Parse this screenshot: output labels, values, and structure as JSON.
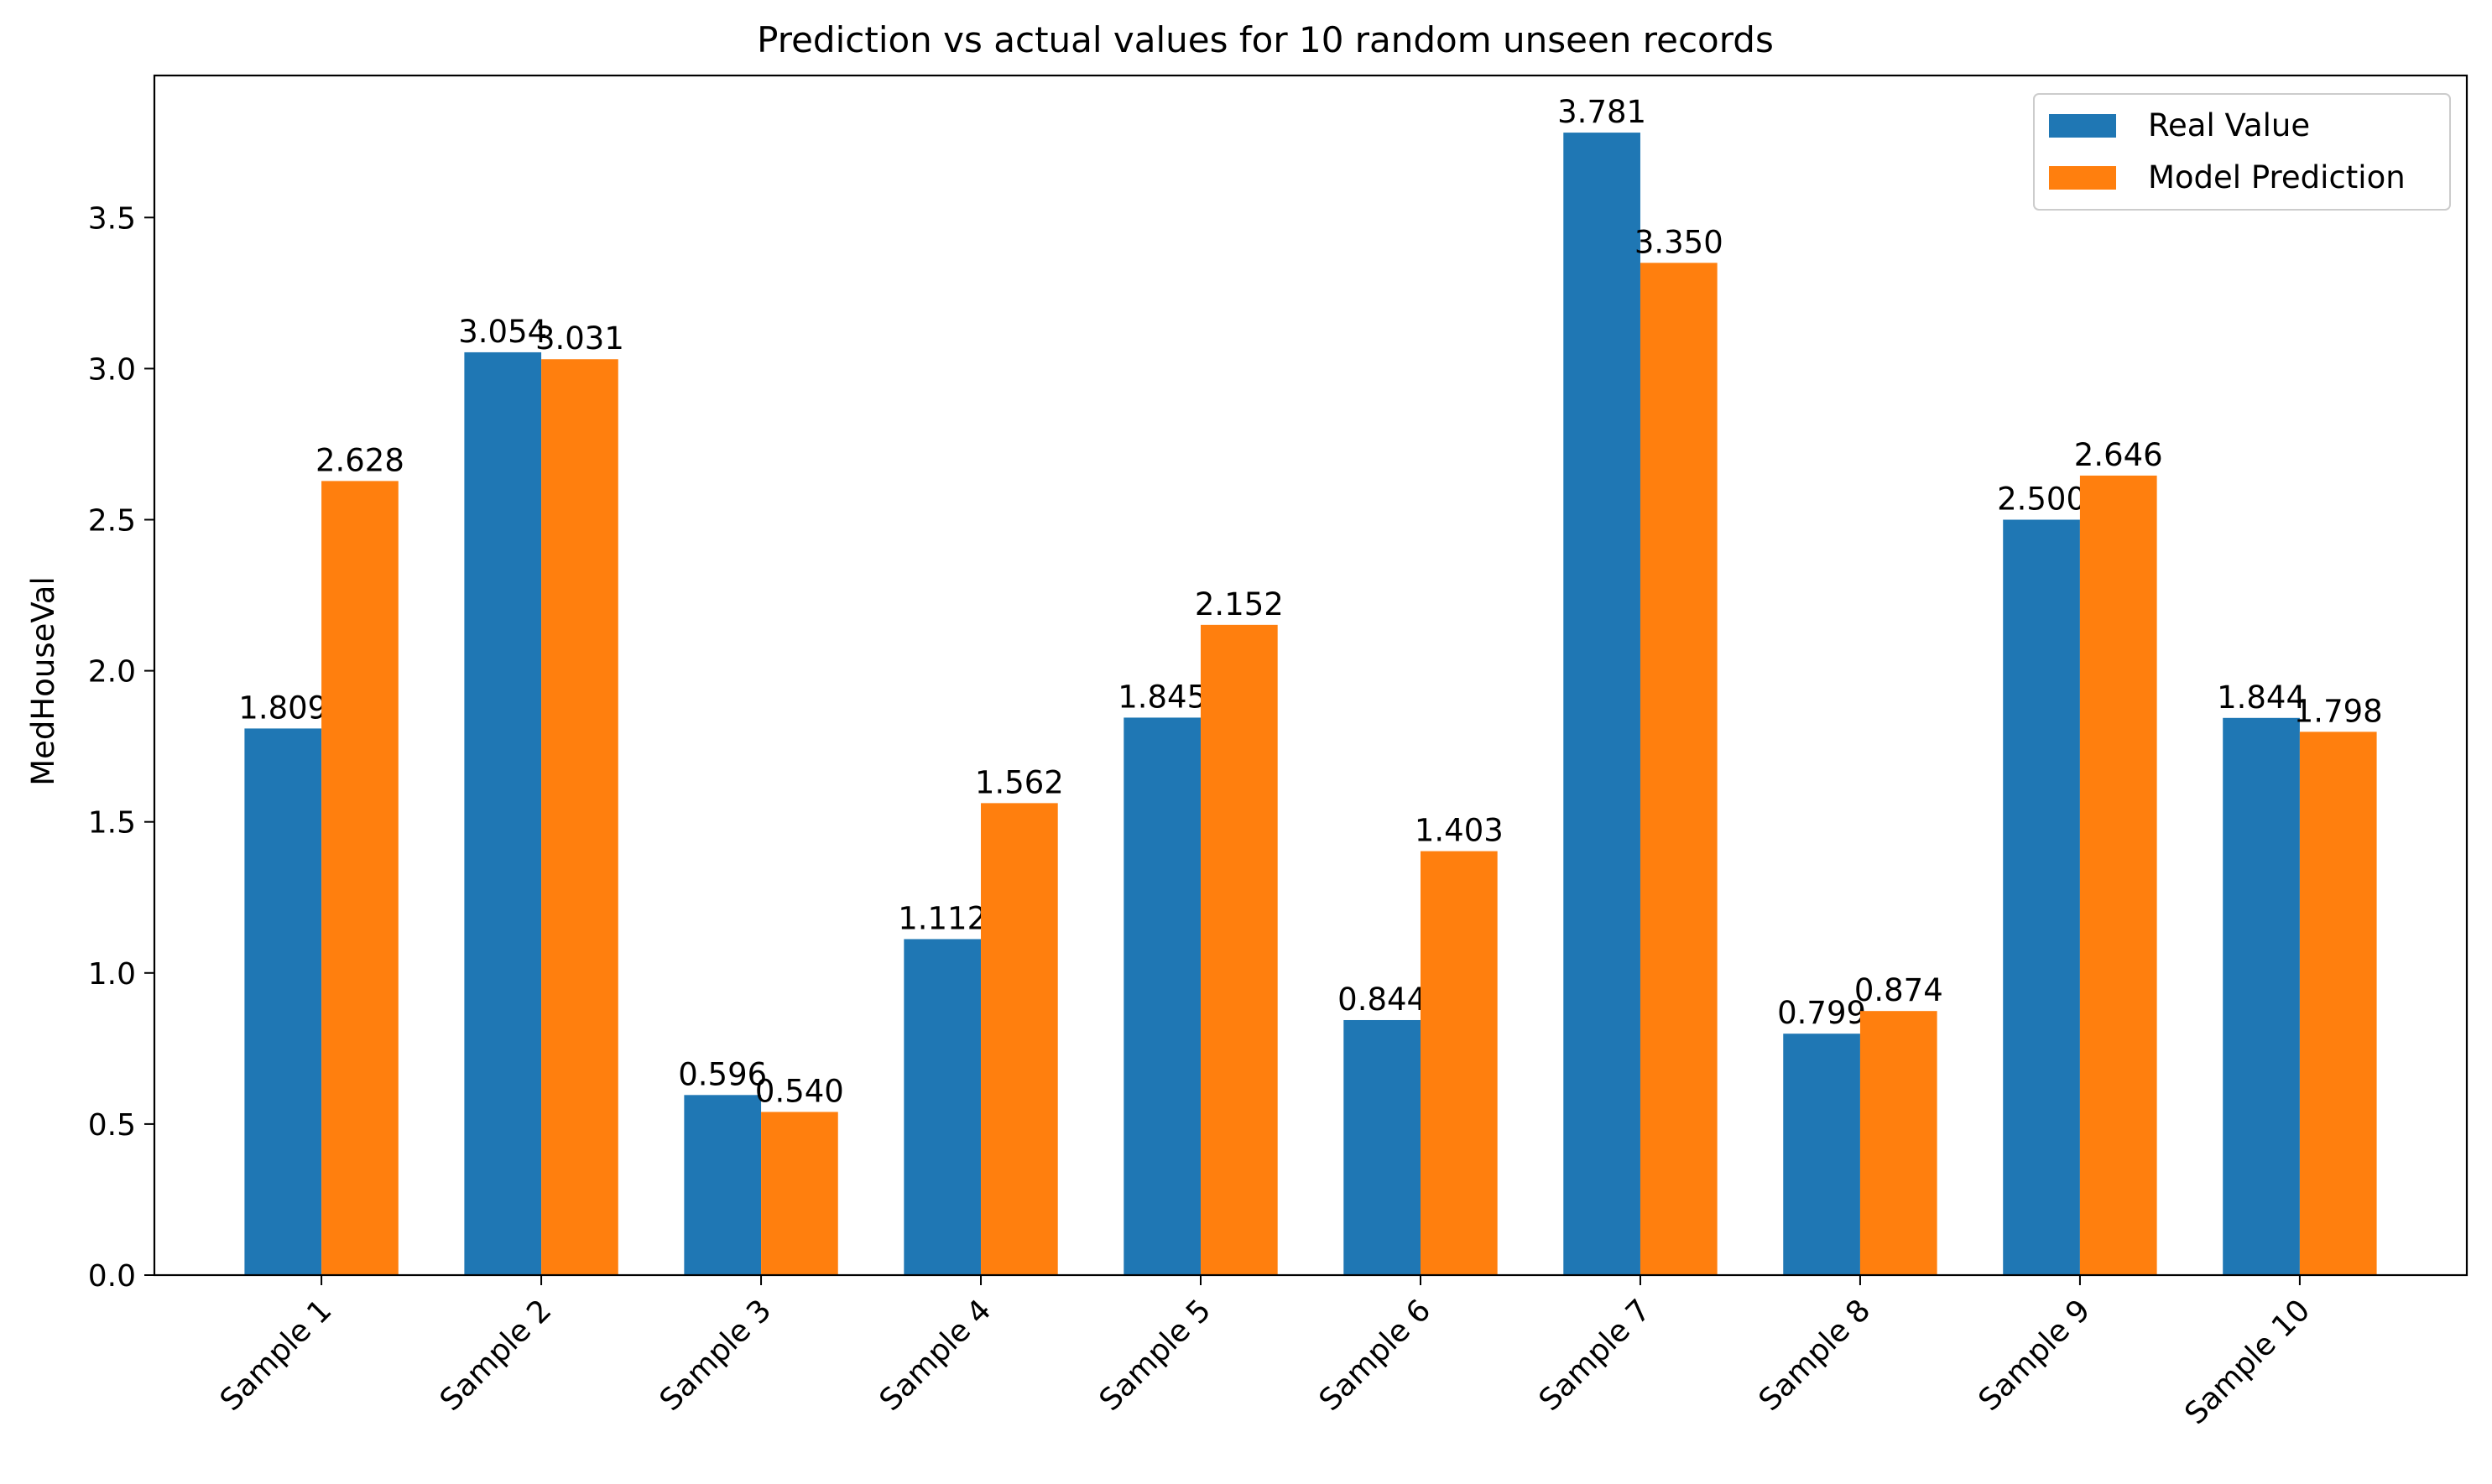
{
  "chart_data": {
    "type": "bar",
    "title": "Prediction vs actual values for 10 random unseen records",
    "xlabel": "",
    "ylabel": "MedHouseVal",
    "categories": [
      "Sample 1",
      "Sample 2",
      "Sample 3",
      "Sample 4",
      "Sample 5",
      "Sample 6",
      "Sample 7",
      "Sample 8",
      "Sample 9",
      "Sample 10"
    ],
    "series": [
      {
        "name": "Real Value",
        "color": "#1f77b4",
        "values": [
          1.809,
          3.054,
          0.596,
          1.112,
          1.845,
          0.844,
          3.781,
          0.799,
          2.5,
          1.844
        ],
        "labels": [
          "1.809",
          "3.054",
          "0.596",
          "1.112",
          "1.845",
          "0.844",
          "3.781",
          "0.799",
          "2.500",
          "1.844"
        ]
      },
      {
        "name": "Model Prediction",
        "color": "#ff7f0e",
        "values": [
          2.628,
          3.031,
          0.54,
          1.562,
          2.152,
          1.403,
          3.35,
          0.874,
          2.646,
          1.798
        ],
        "labels": [
          "2.628",
          "3.031",
          "0.540",
          "1.562",
          "2.152",
          "1.403",
          "3.350",
          "0.874",
          "2.646",
          "1.798"
        ]
      }
    ],
    "ylim": [
      0,
      3.97
    ],
    "yticks": [
      0.0,
      0.5,
      1.0,
      1.5,
      2.0,
      2.5,
      3.0,
      3.5
    ],
    "ytick_labels": [
      "0.0",
      "0.5",
      "1.0",
      "1.5",
      "2.0",
      "2.5",
      "3.0",
      "3.5"
    ],
    "xtick_rotation_deg": 45,
    "grid": false,
    "legend_position": "top-right"
  }
}
